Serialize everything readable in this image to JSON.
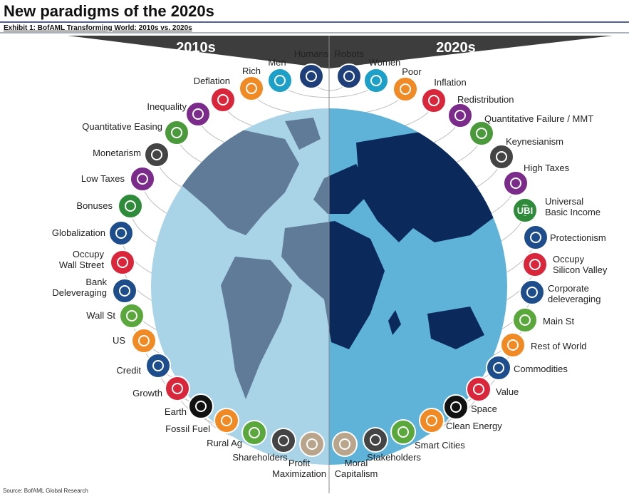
{
  "header": {
    "title": "New paradigms of the 2020s",
    "subtitle": "Exhibit 1: BofAML Transforming World: 2010s vs. 2020s"
  },
  "left": {
    "heading": "2010s",
    "items": [
      {
        "label": "Humans",
        "color": "#1f3f7a"
      },
      {
        "label": "Men",
        "color": "#1da0c8"
      },
      {
        "label": "Rich",
        "color": "#f08a24"
      },
      {
        "label": "Deflation",
        "color": "#d9263a"
      },
      {
        "label": "Inequality",
        "color": "#7b2b8a"
      },
      {
        "label": "Quantitative Easing",
        "color": "#4a9a3c"
      },
      {
        "label": "Monetarism",
        "color": "#444444"
      },
      {
        "label": "Low Taxes",
        "color": "#7b2b8a"
      },
      {
        "label": "Bonuses",
        "color": "#2e8b3a"
      },
      {
        "label": "Globalization",
        "color": "#1e4d8b"
      },
      {
        "label": "Occupy\nWall Street",
        "color": "#d9263a"
      },
      {
        "label": "Bank\nDeleveraging",
        "color": "#1e4d8b"
      },
      {
        "label": "Wall St",
        "color": "#5aa83c"
      },
      {
        "label": "US",
        "color": "#f08a24"
      },
      {
        "label": "Credit",
        "color": "#1e4d8b"
      },
      {
        "label": "Growth",
        "color": "#d9263a"
      },
      {
        "label": "Earth",
        "color": "#111111"
      },
      {
        "label": "Fossil Fuel",
        "color": "#f08a24"
      },
      {
        "label": "Rural Ag",
        "color": "#5aa83c"
      },
      {
        "label": "Shareholders",
        "color": "#444444"
      },
      {
        "label": "Profit\nMaximization",
        "color": "#b8a58c"
      }
    ]
  },
  "right": {
    "heading": "2020s",
    "items": [
      {
        "label": "Robots",
        "color": "#1f3f7a"
      },
      {
        "label": "Women",
        "color": "#1da0c8"
      },
      {
        "label": "Poor",
        "color": "#f08a24"
      },
      {
        "label": "Inflation",
        "color": "#d9263a"
      },
      {
        "label": "Redistribution",
        "color": "#7b2b8a"
      },
      {
        "label": "Quantitative Failure / MMT",
        "color": "#4a9a3c"
      },
      {
        "label": "Keynesianism",
        "color": "#444444"
      },
      {
        "label": "High Taxes",
        "color": "#7b2b8a"
      },
      {
        "label": "Universal\nBasic Income",
        "color": "#2e8b3a",
        "icon_text": "UBI"
      },
      {
        "label": "Protectionism",
        "color": "#1e4d8b"
      },
      {
        "label": "Occupy\nSilicon Valley",
        "color": "#d9263a"
      },
      {
        "label": "Corporate\ndeleveraging",
        "color": "#1e4d8b"
      },
      {
        "label": "Main St",
        "color": "#5aa83c"
      },
      {
        "label": "Rest of World",
        "color": "#f08a24"
      },
      {
        "label": "Commodities",
        "color": "#1e4d8b"
      },
      {
        "label": "Value",
        "color": "#d9263a"
      },
      {
        "label": "Space",
        "color": "#111111"
      },
      {
        "label": "Clean Energy",
        "color": "#f08a24"
      },
      {
        "label": "Smart Cities",
        "color": "#5aa83c"
      },
      {
        "label": "Stakeholders",
        "color": "#444444"
      },
      {
        "label": "Moral\nCapitalism",
        "color": "#b8a58c"
      }
    ]
  },
  "source": "Source: BofAML Global Research"
}
